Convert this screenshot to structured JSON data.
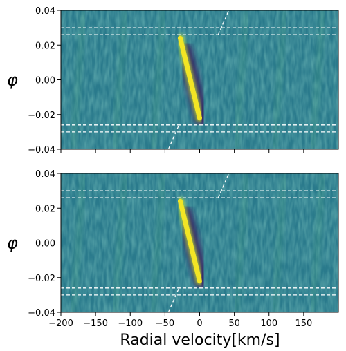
{
  "chart_data": [
    {
      "type": "heatmap",
      "panel": "top",
      "xlabel": "",
      "ylabel": "φ",
      "xlim": [
        -200,
        200
      ],
      "ylim": [
        -0.04,
        0.04
      ],
      "x_ticks": [],
      "y_ticks": [
        "0.04",
        "0.02",
        "0.00",
        "−0.02",
        "−0.04"
      ],
      "y_tick_values": [
        0.04,
        0.02,
        0.0,
        -0.02,
        -0.04
      ],
      "colormap": "viridis",
      "background_color": "#2a7a8c",
      "signal_color": "#f2e525",
      "dark_color": "#3b1a5e",
      "trail": {
        "phi_start": 0.024,
        "phi_end": -0.022,
        "rv_start": -28,
        "rv_end": 0
      },
      "dark_shadow": {
        "phi_start": 0.017,
        "phi_end": -0.022,
        "rv_start": -22,
        "rv_end": 3
      },
      "hlines_phi": [
        0.03,
        0.026,
        -0.026,
        -0.03
      ],
      "orbit_line": {
        "phi_start": -0.04,
        "phi_end": 0.04,
        "rv_start": -45,
        "rv_end": 42
      }
    },
    {
      "type": "heatmap",
      "panel": "bottom",
      "xlabel": "Radial velocity[km/s]",
      "ylabel": "φ",
      "xlim": [
        -200,
        200
      ],
      "ylim": [
        -0.04,
        0.04
      ],
      "x_ticks": [
        "−200",
        "−150",
        "−100",
        "−50",
        "0",
        "50",
        "100",
        "150"
      ],
      "x_tick_values": [
        -200,
        -150,
        -100,
        -50,
        0,
        50,
        100,
        150
      ],
      "y_ticks": [
        "0.04",
        "0.02",
        "0.00",
        "−0.02",
        "−0.04"
      ],
      "y_tick_values": [
        0.04,
        0.02,
        0.0,
        -0.02,
        -0.04
      ],
      "colormap": "viridis",
      "background_color": "#2a7a8c",
      "signal_color": "#f2e525",
      "dark_color": "#3b1a5e",
      "trail": {
        "phi_start": 0.024,
        "phi_end": -0.022,
        "rv_start": -28,
        "rv_end": 0
      },
      "dark_shadow": {
        "phi_start": 0.017,
        "phi_end": -0.022,
        "rv_start": -22,
        "rv_end": 3
      },
      "hlines_phi": [
        0.03,
        0.026,
        -0.026,
        -0.03
      ],
      "orbit_line": {
        "phi_start": -0.04,
        "phi_end": 0.04,
        "rv_start": -45,
        "rv_end": 42
      }
    }
  ]
}
